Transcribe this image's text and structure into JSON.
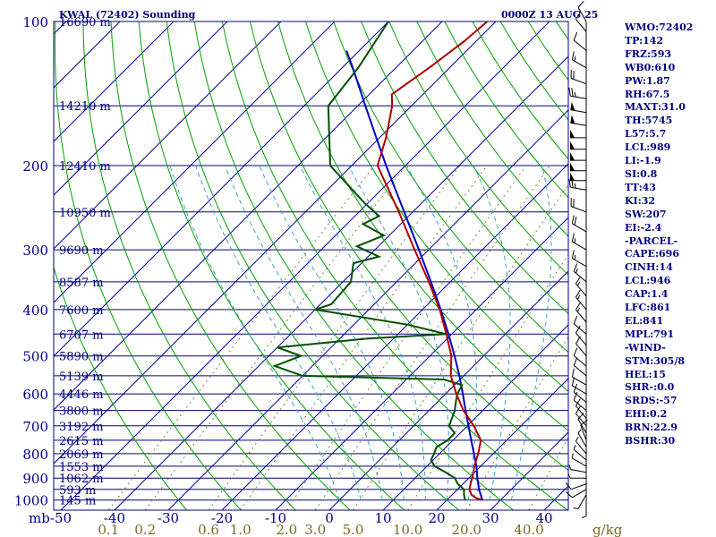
{
  "header": {
    "title": "KWAL (72402) Sounding",
    "time": "0000Z 13 AUG 25"
  },
  "colors": {
    "frame": "#000080",
    "isotherm": "#0000a0",
    "dry_adiabat": "#00a000",
    "moist_adiabat": "#40a0c0",
    "mixing_ratio": "#808040",
    "temperature": "#b00000",
    "dewpoint": "#005000",
    "parcel": "#0000c0",
    "wind": "#000000"
  },
  "indices": [
    "WMO:72402",
    "TP:142",
    "FRZ:593",
    "WB0:610",
    "PW:1.87",
    "RH:67.5",
    "MAXT:31.0",
    "TH:5745",
    "L57:5.7",
    "LCL:989",
    "LI:-1.9",
    "SI:0.8",
    "TT:43",
    "KI:32",
    "SW:207",
    "EI:-2.4",
    "-PARCEL-",
    "CAPE:696",
    "CINH:14",
    "LCL:946",
    "CAP:1.4",
    "LFC:861",
    "EL:841",
    "MPL:791",
    "-WIND-",
    "STM:305/8",
    "HEL:15",
    "SHR-:0.0",
    "SRDS:-57",
    "EHI:0.2",
    "BRN:22.9",
    "BSHR:30"
  ],
  "chart_data": {
    "type": "skew-t",
    "title": "KWAL (72402) Sounding",
    "time_label": "0000Z 13 AUG 25",
    "y_axis_unit": "mb",
    "x_axis_unit": "°C",
    "mixing_ratio_unit": "g/kg",
    "pressure_ticks": [
      100,
      200,
      300,
      400,
      500,
      600,
      700,
      800,
      900,
      1000
    ],
    "temperature_ticks": [
      -50,
      -40,
      -30,
      -20,
      -10,
      0,
      10,
      20,
      30,
      40
    ],
    "mixing_ratio_ticks": [
      "0.1",
      "0.2",
      "0.6",
      "1.0",
      "2.0",
      "3.0",
      "5.0",
      "10.0",
      "20.0",
      "40.0"
    ],
    "mixing_ratio_values": [
      0.1,
      0.2,
      0.6,
      1.0,
      2.0,
      3.0,
      5.0,
      10.0,
      20.0,
      40.0
    ],
    "dry_adiabats_theta_C": [
      -30,
      -20,
      -10,
      0,
      10,
      20,
      30,
      40,
      50,
      60,
      70,
      80,
      90,
      100,
      110,
      120,
      130,
      140,
      150,
      160,
      170,
      180
    ],
    "moist_adiabats_base_C": [
      0,
      4,
      8,
      12,
      16,
      20,
      24,
      28,
      32
    ],
    "height_labels": [
      {
        "p": 100,
        "label": "16690 m"
      },
      {
        "p": 150,
        "label": "14210 m"
      },
      {
        "p": 200,
        "label": "12410 m"
      },
      {
        "p": 250,
        "label": "10950 m"
      },
      {
        "p": 300,
        "label": "9690 m"
      },
      {
        "p": 350,
        "label": "8587 m"
      },
      {
        "p": 400,
        "label": "7600 m"
      },
      {
        "p": 450,
        "label": "6707 m"
      },
      {
        "p": 500,
        "label": "5890 m"
      },
      {
        "p": 550,
        "label": "5139 m"
      },
      {
        "p": 600,
        "label": "4446 m"
      },
      {
        "p": 650,
        "label": "3800 m"
      },
      {
        "p": 700,
        "label": "3192 m"
      },
      {
        "p": 750,
        "label": "2615 m"
      },
      {
        "p": 800,
        "label": "2069 m"
      },
      {
        "p": 850,
        "label": "1553 m"
      },
      {
        "p": 900,
        "label": "1062 m"
      },
      {
        "p": 950,
        "label": "593 m"
      },
      {
        "p": 1000,
        "label": "145 m"
      }
    ],
    "temperature_profile": [
      {
        "p": 1000,
        "t": 26.6
      },
      {
        "p": 990,
        "t": 25.0
      },
      {
        "p": 975,
        "t": 23.6
      },
      {
        "p": 950,
        "t": 22.2
      },
      {
        "p": 925,
        "t": 21.4
      },
      {
        "p": 900,
        "t": 20.6
      },
      {
        "p": 875,
        "t": 19.8
      },
      {
        "p": 850,
        "t": 18.8
      },
      {
        "p": 800,
        "t": 17.2
      },
      {
        "p": 750,
        "t": 15.2
      },
      {
        "p": 700,
        "t": 11.2
      },
      {
        "p": 650,
        "t": 6.4
      },
      {
        "p": 600,
        "t": 2.0
      },
      {
        "p": 550,
        "t": -2.4
      },
      {
        "p": 500,
        "t": -6.0
      },
      {
        "p": 450,
        "t": -11.0
      },
      {
        "p": 400,
        "t": -16.8
      },
      {
        "p": 350,
        "t": -24.0
      },
      {
        "p": 300,
        "t": -32.6
      },
      {
        "p": 250,
        "t": -42.6
      },
      {
        "p": 200,
        "t": -55.2
      },
      {
        "p": 175,
        "t": -58.8
      },
      {
        "p": 150,
        "t": -63.6
      },
      {
        "p": 142,
        "t": -65.8
      },
      {
        "p": 125,
        "t": -63.8
      },
      {
        "p": 110,
        "t": -62.2
      },
      {
        "p": 100,
        "t": -61.6
      }
    ],
    "dewpoint_profile": [
      {
        "p": 1000,
        "td": 23.4
      },
      {
        "p": 975,
        "td": 22.2
      },
      {
        "p": 950,
        "td": 21.2
      },
      {
        "p": 925,
        "td": 19.0
      },
      {
        "p": 900,
        "td": 17.4
      },
      {
        "p": 875,
        "td": 14.6
      },
      {
        "p": 850,
        "td": 11.4
      },
      {
        "p": 825,
        "td": 9.6
      },
      {
        "p": 800,
        "td": 9.0
      },
      {
        "p": 775,
        "td": 8.2
      },
      {
        "p": 750,
        "td": 9.0
      },
      {
        "p": 725,
        "td": 9.0
      },
      {
        "p": 700,
        "td": 6.6
      },
      {
        "p": 650,
        "td": 4.8
      },
      {
        "p": 620,
        "td": 3.2
      },
      {
        "p": 600,
        "td": 2.2
      },
      {
        "p": 575,
        "td": 1.4
      },
      {
        "p": 560,
        "td": -3.0
      },
      {
        "p": 550,
        "td": -30.0
      },
      {
        "p": 525,
        "td": -37.0
      },
      {
        "p": 500,
        "td": -34.0
      },
      {
        "p": 480,
        "td": -40.0
      },
      {
        "p": 460,
        "td": -25.0
      },
      {
        "p": 450,
        "td": -11.0
      },
      {
        "p": 430,
        "td": -20.0
      },
      {
        "p": 400,
        "td": -40.0
      },
      {
        "p": 390,
        "td": -38.0
      },
      {
        "p": 350,
        "td": -38.5
      },
      {
        "p": 320,
        "td": -41.5
      },
      {
        "p": 310,
        "td": -38.0
      },
      {
        "p": 295,
        "td": -44.0
      },
      {
        "p": 280,
        "td": -41.0
      },
      {
        "p": 265,
        "td": -47.0
      },
      {
        "p": 255,
        "td": -45.5
      },
      {
        "p": 240,
        "td": -50.5
      },
      {
        "p": 200,
        "td": -64.0
      },
      {
        "p": 150,
        "td": -75.5
      },
      {
        "p": 125,
        "td": -77.0
      },
      {
        "p": 100,
        "td": -80.0
      }
    ],
    "parcel_profile": [
      {
        "p": 1000,
        "t": 26.6
      },
      {
        "p": 950,
        "t": 24.0
      },
      {
        "p": 900,
        "t": 21.6
      },
      {
        "p": 850,
        "t": 19.2
      },
      {
        "p": 800,
        "t": 16.4
      },
      {
        "p": 750,
        "t": 13.4
      },
      {
        "p": 700,
        "t": 10.2
      },
      {
        "p": 650,
        "t": 6.8
      },
      {
        "p": 600,
        "t": 3.2
      },
      {
        "p": 550,
        "t": -0.8
      },
      {
        "p": 500,
        "t": -5.4
      },
      {
        "p": 450,
        "t": -10.6
      },
      {
        "p": 400,
        "t": -16.6
      },
      {
        "p": 350,
        "t": -23.6
      },
      {
        "p": 300,
        "t": -31.8
      },
      {
        "p": 250,
        "t": -41.6
      },
      {
        "p": 200,
        "t": -53.6
      },
      {
        "p": 175,
        "t": -60.6
      },
      {
        "p": 150,
        "t": -68.6
      },
      {
        "p": 125,
        "t": -78.0
      },
      {
        "p": 115,
        "t": -82.4
      }
    ],
    "wind_barbs": [
      {
        "p": 1000,
        "dir": 180,
        "kt": 5
      },
      {
        "p": 975,
        "dir": 210,
        "kt": 5
      },
      {
        "p": 950,
        "dir": 240,
        "kt": 10
      },
      {
        "p": 925,
        "dir": 250,
        "kt": 10
      },
      {
        "p": 900,
        "dir": 270,
        "kt": 5
      },
      {
        "p": 875,
        "dir": 280,
        "kt": 5
      },
      {
        "p": 850,
        "dir": 300,
        "kt": 5
      },
      {
        "p": 825,
        "dir": 310,
        "kt": 5
      },
      {
        "p": 800,
        "dir": 320,
        "kt": 5
      },
      {
        "p": 775,
        "dir": 330,
        "kt": 5
      },
      {
        "p": 750,
        "dir": 340,
        "kt": 10
      },
      {
        "p": 725,
        "dir": 330,
        "kt": 10
      },
      {
        "p": 700,
        "dir": 320,
        "kt": 10
      },
      {
        "p": 675,
        "dir": 320,
        "kt": 10
      },
      {
        "p": 650,
        "dir": 310,
        "kt": 10
      },
      {
        "p": 625,
        "dir": 310,
        "kt": 10
      },
      {
        "p": 600,
        "dir": 300,
        "kt": 10
      },
      {
        "p": 575,
        "dir": 300,
        "kt": 10
      },
      {
        "p": 550,
        "dir": 310,
        "kt": 10
      },
      {
        "p": 525,
        "dir": 310,
        "kt": 10
      },
      {
        "p": 500,
        "dir": 320,
        "kt": 10
      },
      {
        "p": 475,
        "dir": 320,
        "kt": 10
      },
      {
        "p": 450,
        "dir": 310,
        "kt": 10
      },
      {
        "p": 425,
        "dir": 320,
        "kt": 15
      },
      {
        "p": 400,
        "dir": 320,
        "kt": 15
      },
      {
        "p": 375,
        "dir": 320,
        "kt": 15
      },
      {
        "p": 350,
        "dir": 310,
        "kt": 15
      },
      {
        "p": 325,
        "dir": 300,
        "kt": 15
      },
      {
        "p": 300,
        "dir": 300,
        "kt": 15
      },
      {
        "p": 275,
        "dir": 300,
        "kt": 20
      },
      {
        "p": 250,
        "dir": 290,
        "kt": 20
      },
      {
        "p": 225,
        "dir": 280,
        "kt": 25
      },
      {
        "p": 215,
        "dir": 270,
        "kt": 50
      },
      {
        "p": 205,
        "dir": 270,
        "kt": 50
      },
      {
        "p": 195,
        "dir": 270,
        "kt": 50
      },
      {
        "p": 185,
        "dir": 270,
        "kt": 50
      },
      {
        "p": 175,
        "dir": 270,
        "kt": 50
      },
      {
        "p": 165,
        "dir": 280,
        "kt": 50
      },
      {
        "p": 155,
        "dir": 280,
        "kt": 50
      },
      {
        "p": 145,
        "dir": 280,
        "kt": 25
      },
      {
        "p": 135,
        "dir": 290,
        "kt": 20
      },
      {
        "p": 125,
        "dir": 300,
        "kt": 15
      },
      {
        "p": 115,
        "dir": 310,
        "kt": 10
      },
      {
        "p": 105,
        "dir": 320,
        "kt": 10
      },
      {
        "p": 100,
        "dir": 330,
        "kt": 10
      }
    ],
    "ylim": [
      100,
      1050
    ],
    "xlim": [
      -50,
      46
    ],
    "grid": true,
    "legend": "none"
  }
}
